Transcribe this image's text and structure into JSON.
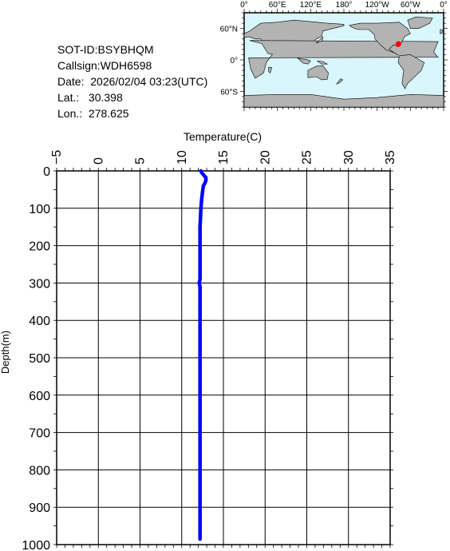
{
  "info": {
    "sot_id": "SOT-ID:BSYBHQM",
    "callsign": "Callsign:WDH6598",
    "date": "Date:  2026/02/04 03:23(UTC)",
    "lat": "Lat.:   30.398",
    "lon": "Lon.:  278.625"
  },
  "map": {
    "top_labels": [
      "0°",
      "60°E",
      "120°E",
      "180°",
      "120°W",
      "60°W",
      "0°"
    ],
    "left_labels": [
      "60°N",
      "0°",
      "60°S"
    ],
    "ocean_color": "#d8f6fb",
    "land_color": "#b3b3b3",
    "marker_color": "#ff0000",
    "marker": {
      "lat": 30.398,
      "lon": 278.625
    }
  },
  "chart_data": {
    "type": "line",
    "title": "",
    "xlabel": "Temperature(C)",
    "ylabel": "Depth(m)",
    "xlim": [
      -5,
      35
    ],
    "ylim": [
      0,
      1000
    ],
    "x_ticks": [
      "-5",
      "0",
      "5",
      "10",
      "15",
      "20",
      "25",
      "30",
      "35"
    ],
    "y_ticks": [
      "0",
      "100",
      "200",
      "300",
      "400",
      "500",
      "600",
      "700",
      "800",
      "900",
      "1000"
    ],
    "grid": true,
    "series": [
      {
        "color": "#0000ff",
        "points": [
          [
            12.3,
            0
          ],
          [
            12.4,
            5
          ],
          [
            12.6,
            10
          ],
          [
            12.9,
            18
          ],
          [
            12.9,
            25
          ],
          [
            12.8,
            32
          ],
          [
            12.6,
            40
          ],
          [
            12.5,
            55
          ],
          [
            12.4,
            75
          ],
          [
            12.3,
            100
          ],
          [
            12.2,
            150
          ],
          [
            12.2,
            200
          ],
          [
            12.2,
            250
          ],
          [
            12.2,
            290
          ],
          [
            12.1,
            300
          ],
          [
            12.2,
            310
          ],
          [
            12.2,
            350
          ],
          [
            12.2,
            400
          ],
          [
            12.2,
            450
          ],
          [
            12.2,
            500
          ],
          [
            12.2,
            550
          ],
          [
            12.2,
            600
          ],
          [
            12.2,
            650
          ],
          [
            12.2,
            700
          ],
          [
            12.2,
            750
          ],
          [
            12.2,
            800
          ],
          [
            12.2,
            850
          ],
          [
            12.2,
            900
          ],
          [
            12.2,
            950
          ],
          [
            12.2,
            985
          ]
        ]
      }
    ]
  }
}
